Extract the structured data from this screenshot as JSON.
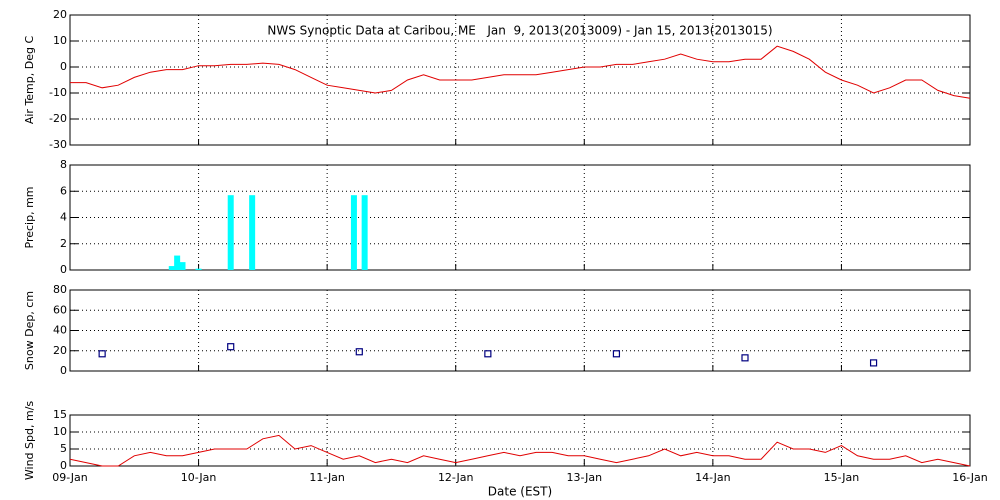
{
  "chart_data": [
    {
      "type": "line",
      "title": "NWS Synoptic Data at Caribou, ME   Jan  9, 2013(2013009) - Jan 15, 2013(2013015)",
      "ylabel": "Air Temp, Deg C",
      "xlim": [
        "2013-01-09T00:00",
        "2013-01-16T00:00"
      ],
      "xticks": [
        "2013-01-09T00:00",
        "2013-01-10T00:00",
        "2013-01-11T00:00",
        "2013-01-12T00:00",
        "2013-01-13T00:00",
        "2013-01-14T00:00",
        "2013-01-15T00:00",
        "2013-01-16T00:00"
      ],
      "ylim": [
        -30,
        20
      ],
      "yticks": [
        -30,
        -20,
        -10,
        0,
        10,
        20
      ],
      "grid": true,
      "color": "#e00000",
      "x": [
        "2013-01-09T00:00",
        "2013-01-09T03:00",
        "2013-01-09T06:00",
        "2013-01-09T09:00",
        "2013-01-09T12:00",
        "2013-01-09T15:00",
        "2013-01-09T18:00",
        "2013-01-09T21:00",
        "2013-01-10T00:00",
        "2013-01-10T03:00",
        "2013-01-10T06:00",
        "2013-01-10T09:00",
        "2013-01-10T12:00",
        "2013-01-10T15:00",
        "2013-01-10T18:00",
        "2013-01-10T21:00",
        "2013-01-11T00:00",
        "2013-01-11T03:00",
        "2013-01-11T06:00",
        "2013-01-11T09:00",
        "2013-01-11T12:00",
        "2013-01-11T15:00",
        "2013-01-11T18:00",
        "2013-01-11T21:00",
        "2013-01-12T00:00",
        "2013-01-12T03:00",
        "2013-01-12T06:00",
        "2013-01-12T09:00",
        "2013-01-12T12:00",
        "2013-01-12T15:00",
        "2013-01-12T18:00",
        "2013-01-12T21:00",
        "2013-01-13T00:00",
        "2013-01-13T03:00",
        "2013-01-13T06:00",
        "2013-01-13T09:00",
        "2013-01-13T12:00",
        "2013-01-13T15:00",
        "2013-01-13T18:00",
        "2013-01-13T21:00",
        "2013-01-14T00:00",
        "2013-01-14T03:00",
        "2013-01-14T06:00",
        "2013-01-14T09:00",
        "2013-01-14T12:00",
        "2013-01-14T15:00",
        "2013-01-14T18:00",
        "2013-01-14T21:00",
        "2013-01-15T00:00",
        "2013-01-15T03:00",
        "2013-01-15T06:00",
        "2013-01-15T09:00",
        "2013-01-15T12:00",
        "2013-01-15T15:00",
        "2013-01-15T18:00",
        "2013-01-15T21:00",
        "2013-01-16T00:00"
      ],
      "values": [
        -6,
        -6,
        -8,
        -7,
        -4,
        -2,
        -1,
        -1,
        0.5,
        0.5,
        1,
        1,
        1.5,
        1,
        -1,
        -4,
        -7,
        -8,
        -9,
        -10,
        -9,
        -5,
        -3,
        -5,
        -5,
        -5,
        -4,
        -3,
        -3,
        -3,
        -2,
        -1,
        0,
        0,
        1,
        1,
        2,
        3,
        5,
        3,
        2,
        2,
        3,
        3,
        8,
        6,
        3,
        -2,
        -5,
        -7,
        -10,
        -8,
        -5,
        -5,
        -9,
        -11,
        -12
      ]
    },
    {
      "type": "bar",
      "ylabel": "Precip, mm",
      "xlim": [
        "2013-01-09T00:00",
        "2013-01-16T00:00"
      ],
      "xticks": [
        "2013-01-09T00:00",
        "2013-01-10T00:00",
        "2013-01-11T00:00",
        "2013-01-12T00:00",
        "2013-01-13T00:00",
        "2013-01-14T00:00",
        "2013-01-15T00:00",
        "2013-01-16T00:00"
      ],
      "ylim": [
        0,
        8
      ],
      "yticks": [
        0,
        2,
        4,
        6,
        8
      ],
      "grid": true,
      "color": "#00ffff",
      "x": [
        "2013-01-09T19:00",
        "2013-01-09T20:00",
        "2013-01-09T21:00",
        "2013-01-10T00:00",
        "2013-01-10T06:00",
        "2013-01-10T10:00",
        "2013-01-11T05:00",
        "2013-01-11T07:00"
      ],
      "values": [
        0.3,
        1.1,
        0.6,
        0.1,
        5.7,
        5.7,
        5.7,
        5.7
      ]
    },
    {
      "type": "scatter",
      "ylabel": "Snow Dep, cm",
      "xlim": [
        "2013-01-09T00:00",
        "2013-01-16T00:00"
      ],
      "xticks": [
        "2013-01-09T00:00",
        "2013-01-10T00:00",
        "2013-01-11T00:00",
        "2013-01-12T00:00",
        "2013-01-13T00:00",
        "2013-01-14T00:00",
        "2013-01-15T00:00",
        "2013-01-16T00:00"
      ],
      "ylim": [
        0,
        80
      ],
      "yticks": [
        0,
        20,
        40,
        60,
        80
      ],
      "grid": true,
      "color": "#000080",
      "x": [
        "2013-01-09T06:00",
        "2013-01-10T06:00",
        "2013-01-11T06:00",
        "2013-01-12T06:00",
        "2013-01-13T06:00",
        "2013-01-14T06:00",
        "2013-01-15T06:00"
      ],
      "values": [
        17,
        24,
        19,
        17,
        17,
        13,
        8
      ]
    },
    {
      "type": "line",
      "ylabel": "Wind Spd, m/s",
      "xlabel": "Date (EST)",
      "xlim": [
        "2013-01-09T00:00",
        "2013-01-16T00:00"
      ],
      "xticks": [
        {
          "value": "2013-01-09T00:00",
          "label": "09-Jan"
        },
        {
          "value": "2013-01-10T00:00",
          "label": "10-Jan"
        },
        {
          "value": "2013-01-11T00:00",
          "label": "11-Jan"
        },
        {
          "value": "2013-01-12T00:00",
          "label": "12-Jan"
        },
        {
          "value": "2013-01-13T00:00",
          "label": "13-Jan"
        },
        {
          "value": "2013-01-14T00:00",
          "label": "14-Jan"
        },
        {
          "value": "2013-01-15T00:00",
          "label": "15-Jan"
        },
        {
          "value": "2013-01-16T00:00",
          "label": "16-Jan"
        }
      ],
      "ylim": [
        0,
        15
      ],
      "yticks": [
        0,
        5,
        10,
        15
      ],
      "grid": true,
      "color": "#e00000",
      "x": [
        "2013-01-09T00:00",
        "2013-01-09T03:00",
        "2013-01-09T06:00",
        "2013-01-09T09:00",
        "2013-01-09T12:00",
        "2013-01-09T15:00",
        "2013-01-09T18:00",
        "2013-01-09T21:00",
        "2013-01-10T00:00",
        "2013-01-10T03:00",
        "2013-01-10T06:00",
        "2013-01-10T09:00",
        "2013-01-10T12:00",
        "2013-01-10T15:00",
        "2013-01-10T18:00",
        "2013-01-10T21:00",
        "2013-01-11T00:00",
        "2013-01-11T03:00",
        "2013-01-11T06:00",
        "2013-01-11T09:00",
        "2013-01-11T12:00",
        "2013-01-11T15:00",
        "2013-01-11T18:00",
        "2013-01-11T21:00",
        "2013-01-12T00:00",
        "2013-01-12T03:00",
        "2013-01-12T06:00",
        "2013-01-12T09:00",
        "2013-01-12T12:00",
        "2013-01-12T15:00",
        "2013-01-12T18:00",
        "2013-01-12T21:00",
        "2013-01-13T00:00",
        "2013-01-13T03:00",
        "2013-01-13T06:00",
        "2013-01-13T09:00",
        "2013-01-13T12:00",
        "2013-01-13T15:00",
        "2013-01-13T18:00",
        "2013-01-13T21:00",
        "2013-01-14T00:00",
        "2013-01-14T03:00",
        "2013-01-14T06:00",
        "2013-01-14T09:00",
        "2013-01-14T12:00",
        "2013-01-14T15:00",
        "2013-01-14T18:00",
        "2013-01-14T21:00",
        "2013-01-15T00:00",
        "2013-01-15T03:00",
        "2013-01-15T06:00",
        "2013-01-15T09:00",
        "2013-01-15T12:00",
        "2013-01-15T15:00",
        "2013-01-15T18:00",
        "2013-01-15T21:00",
        "2013-01-16T00:00"
      ],
      "values": [
        2,
        1,
        0,
        0,
        3,
        4,
        3,
        3,
        4,
        5,
        5,
        5,
        8,
        9,
        5,
        6,
        4,
        2,
        3,
        1,
        2,
        1,
        3,
        2,
        1,
        2,
        3,
        4,
        3,
        4,
        4,
        3,
        3,
        2,
        1,
        2,
        3,
        5,
        3,
        4,
        3,
        3,
        2,
        2,
        7,
        5,
        5,
        4,
        6,
        3,
        2,
        2,
        3,
        1,
        2,
        1,
        0
      ]
    }
  ]
}
